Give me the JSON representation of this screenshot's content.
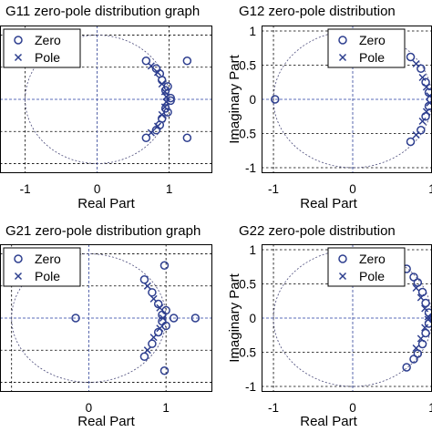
{
  "chart_data": [
    {
      "type": "scatter",
      "title": "G11 zero-pole distribution graph",
      "xlabel": "Real Part",
      "ylabel": "",
      "x_ticks": [
        -1,
        0,
        1
      ],
      "y_ticks": [],
      "x_tick_labels": [
        "-1",
        "0",
        "1"
      ],
      "y_tick_labels": [],
      "xlim": [
        -1.35,
        1.6
      ],
      "ylim": [
        -1.15,
        1.15
      ],
      "grid": true,
      "legend": {
        "position": "top-left",
        "entries": [
          "Zero",
          "Pole"
        ]
      },
      "series": [
        {
          "name": "Zero",
          "marker": "circle",
          "points": [
            [
              0.68,
              0.6
            ],
            [
              1.25,
              0.6
            ],
            [
              0.68,
              -0.6
            ],
            [
              1.25,
              -0.6
            ],
            [
              0.82,
              0.48
            ],
            [
              0.82,
              -0.48
            ],
            [
              0.9,
              0.3
            ],
            [
              0.9,
              -0.3
            ],
            [
              0.98,
              0.2
            ],
            [
              0.98,
              -0.2
            ],
            [
              1.02,
              0.02
            ],
            [
              1.02,
              -0.02
            ],
            [
              0.95,
              0.14
            ],
            [
              0.95,
              -0.14
            ],
            [
              0.87,
              0.4
            ],
            [
              0.87,
              -0.4
            ]
          ]
        },
        {
          "name": "Pole",
          "marker": "x",
          "points": [
            [
              0.75,
              0.52
            ],
            [
              0.75,
              -0.52
            ],
            [
              0.84,
              0.42
            ],
            [
              0.84,
              -0.42
            ],
            [
              0.9,
              0.24
            ],
            [
              0.9,
              -0.24
            ],
            [
              0.94,
              0.12
            ],
            [
              0.94,
              -0.12
            ],
            [
              0.96,
              0.04
            ],
            [
              0.96,
              -0.04
            ]
          ]
        }
      ]
    },
    {
      "type": "scatter",
      "title": "G12 zero-pole distribution",
      "xlabel": "Real Part",
      "ylabel": "Imaginary Part",
      "x_ticks": [
        -1,
        0,
        1
      ],
      "y_ticks": [
        1,
        0.5,
        0,
        -0.5,
        -1
      ],
      "x_tick_labels": [
        "-1",
        "0",
        "1"
      ],
      "y_tick_labels": [
        "1",
        "0.5",
        "0",
        "-0.5",
        "-1"
      ],
      "xlim": [
        -1.15,
        1.0
      ],
      "ylim": [
        -1.08,
        1.08
      ],
      "grid": true,
      "legend": {
        "position": "top-right",
        "entries": [
          "Zero",
          "Pole"
        ]
      },
      "series": [
        {
          "name": "Zero",
          "marker": "circle",
          "points": [
            [
              -0.98,
              0.0
            ],
            [
              0.73,
              0.62
            ],
            [
              0.73,
              -0.62
            ],
            [
              0.86,
              0.45
            ],
            [
              0.86,
              -0.45
            ],
            [
              0.92,
              0.25
            ],
            [
              0.92,
              -0.25
            ],
            [
              0.96,
              0.1
            ],
            [
              0.96,
              -0.1
            ]
          ]
        },
        {
          "name": "Pole",
          "marker": "x",
          "points": [
            [
              0.8,
              0.52
            ],
            [
              0.8,
              -0.52
            ],
            [
              0.88,
              0.32
            ],
            [
              0.88,
              -0.32
            ],
            [
              0.93,
              0.18
            ],
            [
              0.93,
              -0.18
            ],
            [
              0.97,
              0.05
            ],
            [
              0.97,
              -0.05
            ]
          ]
        }
      ]
    },
    {
      "type": "scatter",
      "title": "G21 zero-pole distribution graph",
      "xlabel": "Real Part",
      "ylabel": "",
      "x_ticks": [
        0,
        1
      ],
      "y_ticks": [],
      "x_tick_labels": [
        "0",
        "1"
      ],
      "y_tick_labels": [],
      "xlim": [
        -1.15,
        1.6
      ],
      "ylim": [
        -1.15,
        1.15
      ],
      "grid": true,
      "legend": {
        "position": "top-left",
        "entries": [
          "Zero",
          "Pole"
        ]
      },
      "series": [
        {
          "name": "Zero",
          "marker": "circle",
          "points": [
            [
              -0.17,
              0.0
            ],
            [
              1.38,
              0.0
            ],
            [
              1.1,
              0.0
            ],
            [
              0.98,
              0.82
            ],
            [
              0.98,
              -0.82
            ],
            [
              0.72,
              0.6
            ],
            [
              0.72,
              -0.6
            ],
            [
              0.82,
              0.4
            ],
            [
              0.82,
              -0.4
            ],
            [
              0.9,
              0.22
            ],
            [
              0.9,
              -0.22
            ],
            [
              0.95,
              0.05
            ],
            [
              0.95,
              -0.05
            ],
            [
              1.0,
              0.12
            ],
            [
              1.0,
              -0.12
            ]
          ]
        },
        {
          "name": "Pole",
          "marker": "x",
          "points": [
            [
              0.76,
              0.5
            ],
            [
              0.76,
              -0.5
            ],
            [
              0.84,
              0.3
            ],
            [
              0.84,
              -0.3
            ],
            [
              0.92,
              0.16
            ],
            [
              0.92,
              -0.16
            ],
            [
              0.96,
              0.0
            ]
          ]
        }
      ]
    },
    {
      "type": "scatter",
      "title": "G22 zero-pole distribution",
      "xlabel": "Real Part",
      "ylabel": "Imaginary Part",
      "x_ticks": [
        -1,
        0,
        1
      ],
      "y_ticks": [
        1,
        0.5,
        0,
        -0.5,
        -1
      ],
      "x_tick_labels": [
        "-1",
        "0",
        "1"
      ],
      "y_tick_labels": [
        "1",
        "0.5",
        "0",
        "-0.5",
        "-1"
      ],
      "xlim": [
        -1.15,
        1.0
      ],
      "ylim": [
        -1.08,
        1.08
      ],
      "grid": true,
      "legend": {
        "position": "top-right",
        "entries": [
          "Zero",
          "Pole"
        ]
      },
      "series": [
        {
          "name": "Zero",
          "marker": "circle",
          "points": [
            [
              0.68,
              0.72
            ],
            [
              0.68,
              -0.72
            ],
            [
              0.82,
              0.52
            ],
            [
              0.82,
              -0.52
            ],
            [
              0.88,
              0.38
            ],
            [
              0.88,
              -0.38
            ],
            [
              0.92,
              0.22
            ],
            [
              0.92,
              -0.22
            ],
            [
              0.96,
              0.08
            ],
            [
              0.96,
              -0.08
            ],
            [
              0.77,
              0.6
            ],
            [
              0.77,
              -0.6
            ]
          ]
        },
        {
          "name": "Pole",
          "marker": "x",
          "points": [
            [
              0.8,
              0.44
            ],
            [
              0.8,
              -0.44
            ],
            [
              0.86,
              0.3
            ],
            [
              0.86,
              -0.3
            ],
            [
              0.91,
              0.14
            ],
            [
              0.91,
              -0.14
            ],
            [
              0.95,
              0.02
            ],
            [
              0.95,
              -0.02
            ]
          ]
        }
      ]
    }
  ]
}
